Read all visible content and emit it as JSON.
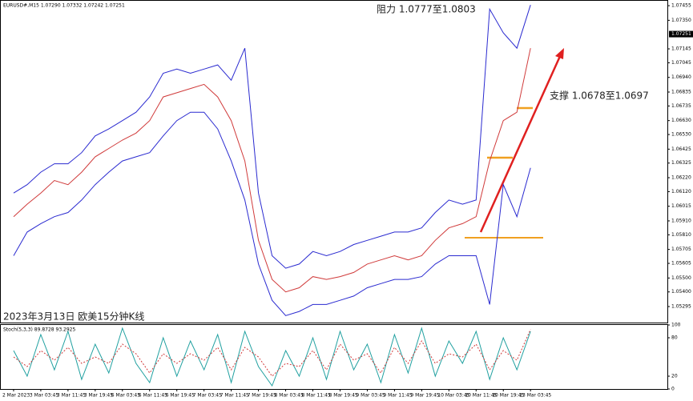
{
  "chart_data": [
    {
      "type": "line",
      "title": "EURUSD#,M15  1.07290 1.07332 1.07242 1.07251",
      "annotations": [
        "阻力 1.0777至1.0803",
        "支撑 1.0678至1.0697",
        "2023年3月13日 欧美15分钟K线"
      ],
      "last_price": 1.07251,
      "x": [
        0,
        1,
        2,
        3,
        4,
        5,
        6,
        7,
        8,
        9,
        10,
        11,
        12,
        13,
        14,
        15,
        16,
        17,
        18,
        19,
        20,
        21,
        22,
        23,
        24,
        25,
        26,
        27,
        28,
        29,
        30,
        31,
        32,
        33,
        34,
        35,
        36,
        37,
        38
      ],
      "series": [
        {
          "name": "Price",
          "color": "#d03a3a",
          "values": [
            1.0594,
            1.0603,
            1.0611,
            1.062,
            1.0617,
            1.0626,
            1.0637,
            1.0643,
            1.0649,
            1.0654,
            1.0663,
            1.068,
            1.0683,
            1.0686,
            1.0689,
            1.068,
            1.0663,
            1.0634,
            1.0577,
            1.0549,
            1.054,
            1.0543,
            1.0551,
            1.0549,
            1.0551,
            1.0554,
            1.056,
            1.0563,
            1.0566,
            1.0563,
            1.0566,
            1.0577,
            1.0586,
            1.0589,
            1.0594,
            1.0634,
            1.0663,
            1.0669,
            1.0715
          ]
        },
        {
          "name": "Upper band",
          "color": "#2a2ad0",
          "values": [
            1.0611,
            1.0617,
            1.0626,
            1.0632,
            1.0632,
            1.064,
            1.0652,
            1.0657,
            1.0663,
            1.0669,
            1.068,
            1.0697,
            1.07,
            1.0697,
            1.07,
            1.0703,
            1.0692,
            1.0715,
            1.0611,
            1.0566,
            1.0557,
            1.056,
            1.0569,
            1.0566,
            1.0569,
            1.0574,
            1.0577,
            1.058,
            1.0583,
            1.0583,
            1.0586,
            1.0597,
            1.0606,
            1.0603,
            1.0606,
            1.0743,
            1.0726,
            1.0715,
            1.0746
          ]
        },
        {
          "name": "Lower band",
          "color": "#2a2ad0",
          "values": [
            1.0566,
            1.0583,
            1.0589,
            1.0594,
            1.0597,
            1.0606,
            1.0617,
            1.0626,
            1.0634,
            1.0637,
            1.064,
            1.0652,
            1.0663,
            1.0669,
            1.0669,
            1.0657,
            1.0634,
            1.0606,
            1.056,
            1.0534,
            1.0523,
            1.0526,
            1.0531,
            1.0531,
            1.0534,
            1.0537,
            1.0543,
            1.0546,
            1.0549,
            1.0549,
            1.0551,
            1.056,
            1.0566,
            1.0566,
            1.0566,
            1.0531,
            1.0617,
            1.0594,
            1.0629
          ]
        }
      ],
      "xlim": [
        -0.94,
        48.06
      ],
      "xticks": [
        {
          "value": 0,
          "label": "2 Mar 2023"
        },
        {
          "value": 2,
          "label": "3 Mar 03:45"
        },
        {
          "value": 4,
          "label": "3 Mar 11:45"
        },
        {
          "value": 6,
          "label": "3 Mar 19:45"
        },
        {
          "value": 8,
          "label": "6 Mar 03:45"
        },
        {
          "value": 10,
          "label": "6 Mar 11:45"
        },
        {
          "value": 12,
          "label": "6 Mar 19:45"
        },
        {
          "value": 14,
          "label": "7 Mar 03:45"
        },
        {
          "value": 16,
          "label": "7 Mar 11:45"
        },
        {
          "value": 18,
          "label": "7 Mar 19:45"
        },
        {
          "value": 20,
          "label": "8 Mar 03:45"
        },
        {
          "value": 22,
          "label": "8 Mar 11:45"
        },
        {
          "value": 24,
          "label": "8 Mar 19:45"
        },
        {
          "value": 26,
          "label": "9 Mar 03:45"
        },
        {
          "value": 28,
          "label": "9 Mar 11:45"
        },
        {
          "value": 30,
          "label": "9 Mar 19:45"
        },
        {
          "value": 32,
          "label": "10 Mar 03:45"
        },
        {
          "value": 34,
          "label": "10 Mar 11:45"
        },
        {
          "value": 36,
          "label": "10 Mar 19:45"
        },
        {
          "value": 38,
          "label": "13 Mar 03:45"
        }
      ],
      "ylim": [
        1.0518,
        1.0749
      ],
      "yticks": [
        1.07455,
        {
          "value": 1.0735,
          "label": "1.07350"
        },
        1.07145,
        1.07045,
        {
          "value": 1.0694,
          "label": "1.06940"
        },
        1.06835,
        1.06735,
        {
          "value": 1.0663,
          "label": "1.06630"
        },
        {
          "value": 1.0653,
          "label": "1.06530"
        },
        1.06425,
        1.06325,
        {
          "value": 1.0622,
          "label": "1.06220"
        },
        {
          "value": 1.0612,
          "label": "1.06120"
        },
        1.06015,
        {
          "value": 1.0591,
          "label": "1.05910"
        },
        {
          "value": 1.0581,
          "label": "1.05810"
        },
        1.05705,
        1.05605,
        {
          "value": 1.055,
          "label": "1.05500"
        },
        {
          "value": 1.054,
          "label": "1.05400"
        },
        1.05295
      ]
    },
    {
      "type": "line",
      "title": "Stoch(5,3,3) 89.8728 93.2925",
      "x": [
        0,
        1,
        2,
        3,
        4,
        5,
        6,
        7,
        8,
        9,
        10,
        11,
        12,
        13,
        14,
        15,
        16,
        17,
        18,
        19,
        20,
        21,
        22,
        23,
        24,
        25,
        26,
        27,
        28,
        29,
        30,
        31,
        32,
        33,
        34,
        35,
        36,
        37,
        38
      ],
      "series": [
        {
          "name": "Main",
          "color": "#20a0a0",
          "style": "solid",
          "values": [
            60,
            20,
            85,
            30,
            90,
            15,
            70,
            25,
            95,
            40,
            10,
            80,
            20,
            75,
            30,
            85,
            10,
            90,
            35,
            5,
            60,
            20,
            80,
            15,
            90,
            30,
            70,
            10,
            85,
            25,
            95,
            20,
            75,
            40,
            90,
            15,
            80,
            30,
            90
          ]
        },
        {
          "name": "Signal",
          "color": "#d03a3a",
          "style": "dashed",
          "values": [
            50,
            35,
            60,
            45,
            65,
            40,
            50,
            40,
            70,
            55,
            25,
            55,
            40,
            55,
            45,
            65,
            30,
            65,
            50,
            20,
            40,
            35,
            60,
            30,
            70,
            45,
            55,
            25,
            65,
            40,
            75,
            40,
            55,
            50,
            70,
            30,
            60,
            45,
            93
          ]
        }
      ],
      "xlim": [
        -0.94,
        48.06
      ],
      "ylim": [
        0,
        100
      ],
      "yticks": [
        100,
        80,
        20,
        0
      ]
    }
  ]
}
